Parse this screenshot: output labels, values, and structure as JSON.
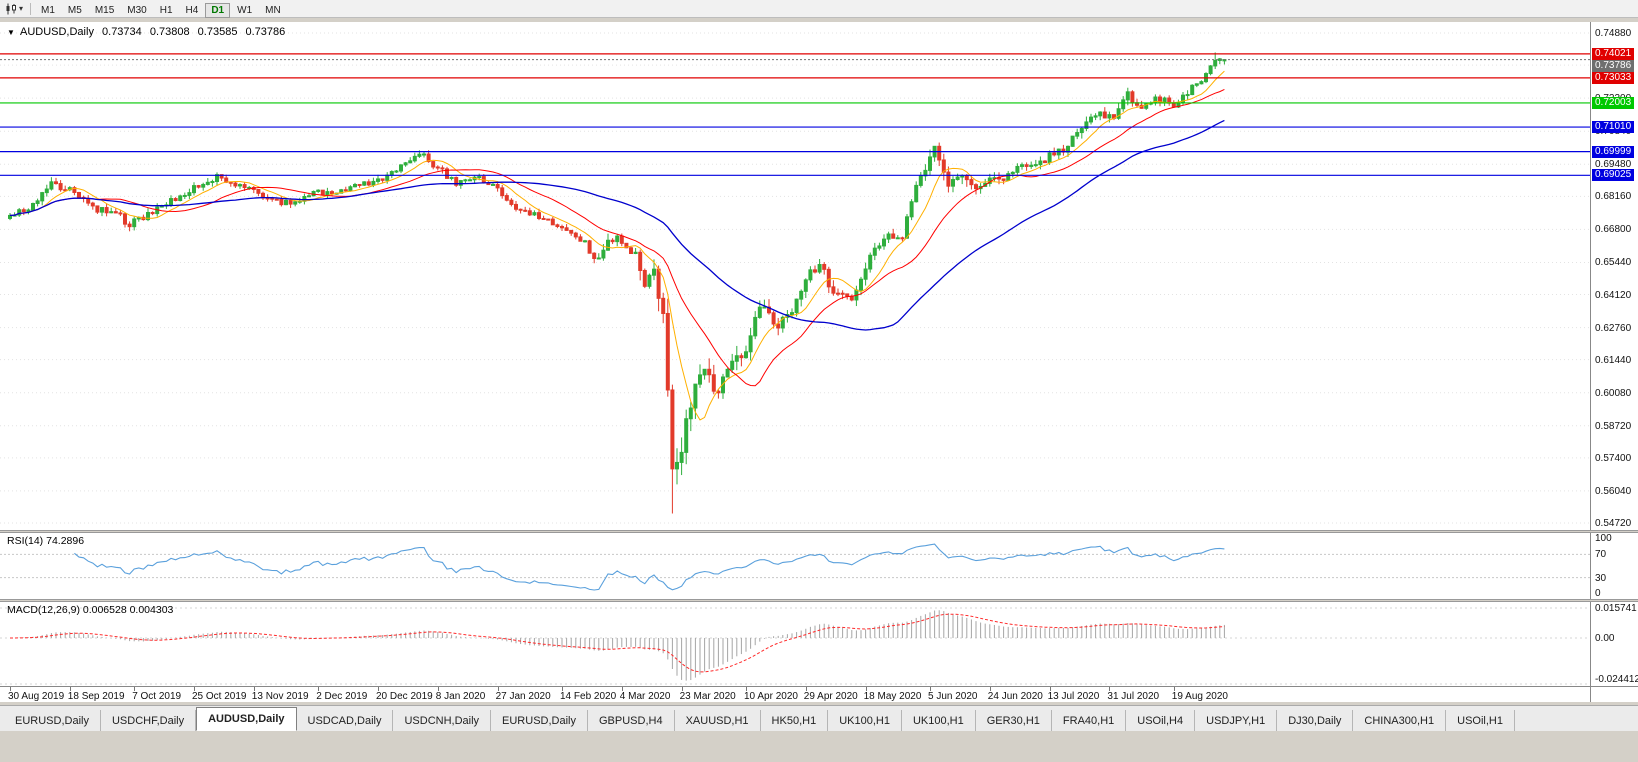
{
  "toolbar": {
    "timeframes": [
      "M1",
      "M5",
      "M15",
      "M30",
      "H1",
      "H4",
      "D1",
      "W1",
      "MN"
    ],
    "active_timeframe": "D1"
  },
  "chart": {
    "symbol_title": "AUDUSD,Daily",
    "open": "0.73734",
    "high": "0.73808",
    "low": "0.73585",
    "close": "0.73786"
  },
  "rsi_panel": {
    "name": "RSI(14)",
    "value": "74.2896",
    "axis_labels": [
      "100",
      "70",
      "30",
      "0"
    ]
  },
  "macd_panel": {
    "name": "MACD(12,26,9)",
    "value": "0.006528 0.004303",
    "axis_labels": [
      "0.015741",
      "0.00",
      "-0.024412"
    ]
  },
  "tabs": [
    "EURUSD,Daily",
    "USDCHF,Daily",
    "AUDUSD,Daily",
    "USDCAD,Daily",
    "USDCNH,Daily",
    "EURUSD,Daily",
    "GBPUSD,H4",
    "XAUUSD,H1",
    "HK50,H1",
    "UK100,H1",
    "UK100,H1",
    "GER30,H1",
    "FRA40,H1",
    "USOil,H4",
    "USDJPY,H1",
    "DJ30,Daily",
    "CHINA300,H1",
    "USOil,H1"
  ],
  "active_tab_index": 2,
  "colors": {
    "up": "#2fae3d",
    "down": "#e23a2a",
    "ma_fast": "#ffb000",
    "ma_mid": "#ff0000",
    "ma_slow": "#0000cd",
    "rsi_line": "#5aa0dc",
    "macd_hist": "#a6a6a6",
    "macd_signal": "#ff2a2a",
    "level_red": "#e00000",
    "level_green": "#00c800",
    "level_blue": "#0000e0",
    "bid": "#6f6f6f",
    "grid": "#e3e3e3"
  },
  "chart_data": {
    "type": "candlestick",
    "symbol": "AUDUSD",
    "timeframe": "Daily",
    "x_tick_labels": [
      "30 Aug 2019",
      "18 Sep 2019",
      "7 Oct 2019",
      "25 Oct 2019",
      "13 Nov 2019",
      "2 Dec 2019",
      "20 Dec 2019",
      "8 Jan 2020",
      "27 Jan 2020",
      "14 Feb 2020",
      "4 Mar 2020",
      "23 Mar 2020",
      "10 Apr 2020",
      "29 Apr 2020",
      "18 May 2020",
      "5 Jun 2020",
      "24 Jun 2020",
      "13 Jul 2020",
      "31 Jul 2020",
      "19 Aug 2020"
    ],
    "candles_per_tick": 13.3,
    "candle_count": 265,
    "y_axis": {
      "min": 0.5472,
      "max": 0.7488,
      "tick_labels": [
        "0.74880",
        "0.73560",
        "0.72200",
        "0.70840",
        "0.69480",
        "0.68160",
        "0.66800",
        "0.65440",
        "0.64120",
        "0.62760",
        "0.61440",
        "0.60080",
        "0.58720",
        "0.57400",
        "0.56040",
        "0.54720"
      ]
    },
    "price_keypoints": [
      [
        0,
        0.6725,
        0.002
      ],
      [
        4,
        0.677,
        0.002
      ],
      [
        9,
        0.6865,
        0.0022
      ],
      [
        13,
        0.6845,
        0.002
      ],
      [
        18,
        0.677,
        0.002
      ],
      [
        23,
        0.6745,
        0.002
      ],
      [
        26,
        0.67,
        0.0022
      ],
      [
        29,
        0.6725,
        0.002
      ],
      [
        34,
        0.6785,
        0.002
      ],
      [
        40,
        0.685,
        0.002
      ],
      [
        45,
        0.6895,
        0.002
      ],
      [
        50,
        0.6855,
        0.0018
      ],
      [
        53,
        0.684,
        0.0018
      ],
      [
        57,
        0.6795,
        0.0018
      ],
      [
        62,
        0.679,
        0.0018
      ],
      [
        66,
        0.684,
        0.0018
      ],
      [
        70,
        0.6825,
        0.0018
      ],
      [
        74,
        0.6855,
        0.0018
      ],
      [
        80,
        0.6885,
        0.002
      ],
      [
        85,
        0.6935,
        0.0018
      ],
      [
        89,
        0.7,
        0.0018
      ],
      [
        93,
        0.6935,
        0.0022
      ],
      [
        97,
        0.6865,
        0.002
      ],
      [
        101,
        0.6895,
        0.0018
      ],
      [
        106,
        0.6845,
        0.0018
      ],
      [
        111,
        0.6755,
        0.0018
      ],
      [
        116,
        0.673,
        0.0018
      ],
      [
        120,
        0.6685,
        0.0018
      ],
      [
        124,
        0.664,
        0.002
      ],
      [
        128,
        0.6555,
        0.0025
      ],
      [
        131,
        0.665,
        0.0035
      ],
      [
        133,
        0.6615,
        0.003
      ],
      [
        136,
        0.659,
        0.0035
      ],
      [
        138,
        0.6485,
        0.006
      ],
      [
        140,
        0.6495,
        0.006
      ],
      [
        142,
        0.629,
        0.0075
      ],
      [
        144,
        0.5745,
        0.009
      ],
      [
        146,
        0.58,
        0.008
      ],
      [
        148,
        0.5955,
        0.007
      ],
      [
        151,
        0.613,
        0.006
      ],
      [
        154,
        0.6,
        0.005
      ],
      [
        157,
        0.615,
        0.0045
      ],
      [
        160,
        0.618,
        0.0045
      ],
      [
        163,
        0.636,
        0.004
      ],
      [
        166,
        0.6285,
        0.004
      ],
      [
        170,
        0.633,
        0.0035
      ],
      [
        173,
        0.648,
        0.0035
      ],
      [
        176,
        0.6545,
        0.0032
      ],
      [
        179,
        0.642,
        0.0032
      ],
      [
        183,
        0.6405,
        0.003
      ],
      [
        186,
        0.653,
        0.003
      ],
      [
        190,
        0.664,
        0.0028
      ],
      [
        194,
        0.6655,
        0.0028
      ],
      [
        198,
        0.69,
        0.0035
      ],
      [
        201,
        0.7,
        0.0035
      ],
      [
        204,
        0.685,
        0.004
      ],
      [
        207,
        0.688,
        0.0035
      ],
      [
        210,
        0.6845,
        0.003
      ],
      [
        213,
        0.688,
        0.0028
      ],
      [
        217,
        0.6905,
        0.0025
      ],
      [
        221,
        0.694,
        0.0025
      ],
      [
        226,
        0.698,
        0.0025
      ],
      [
        229,
        0.7,
        0.0025
      ],
      [
        233,
        0.711,
        0.0028
      ],
      [
        237,
        0.715,
        0.0025
      ],
      [
        240,
        0.714,
        0.0025
      ],
      [
        243,
        0.723,
        0.0025
      ],
      [
        246,
        0.7175,
        0.0025
      ],
      [
        249,
        0.723,
        0.0022
      ],
      [
        253,
        0.7185,
        0.0022
      ],
      [
        256,
        0.724,
        0.0022
      ],
      [
        259,
        0.73,
        0.0022
      ],
      [
        262,
        0.7375,
        0.0022
      ],
      [
        263,
        0.7385,
        0.0018
      ],
      [
        264,
        0.7379,
        0.0015
      ]
    ],
    "overrides": [
      {
        "i": 144,
        "low": 0.5511
      },
      {
        "i": 201,
        "high": 0.7015
      },
      {
        "i": 262,
        "high": 0.7408
      },
      {
        "i": 264,
        "open": 0.73734,
        "high": 0.73808,
        "low": 0.73585,
        "close": 0.73786
      }
    ],
    "last_candle_ohlc": {
      "open": 0.73734,
      "high": 0.73808,
      "low": 0.73585,
      "close": 0.73786
    },
    "crash_low": 0.5511,
    "horizontal_levels": [
      {
        "price": 0.74021,
        "color": "red"
      },
      {
        "price": 0.73033,
        "color": "red"
      },
      {
        "price": 0.72003,
        "color": "green"
      },
      {
        "price": 0.7101,
        "color": "blue"
      },
      {
        "price": 0.69999,
        "color": "blue"
      },
      {
        "price": 0.69025,
        "color": "blue"
      }
    ],
    "bid_price": 0.73786,
    "moving_averages": [
      {
        "period": 8,
        "color_key": "ma_fast"
      },
      {
        "period": 20,
        "color_key": "ma_mid"
      },
      {
        "period": 50,
        "color_key": "ma_slow"
      }
    ],
    "rsi": {
      "period": 14,
      "current": 74.2896,
      "levels": [
        70,
        30
      ],
      "range": [
        0,
        100
      ]
    },
    "macd": {
      "fast": 12,
      "slow": 26,
      "signal_period": 9,
      "current_macd": 0.006528,
      "current_signal": 0.004303,
      "axis_max": 0.015741,
      "axis_zero": 0.0,
      "axis_min": -0.024412
    }
  }
}
